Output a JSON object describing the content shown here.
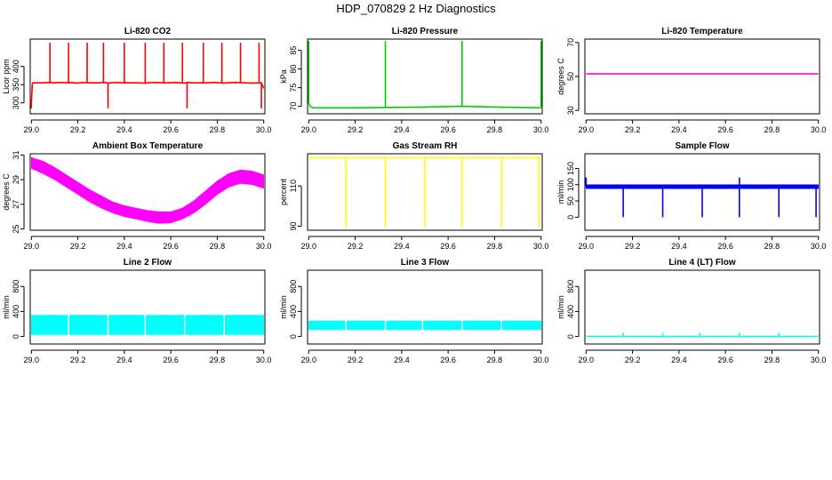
{
  "page_title": "HDP_070829  2 Hz Diagnostics",
  "chart_data": [
    {
      "id": "co2",
      "type": "line",
      "title": "Li-820 CO2",
      "ylabel": "Licor ppm",
      "xlim": [
        28.995,
        30.005
      ],
      "ylim": [
        270,
        475
      ],
      "x_ticks": [
        29.0,
        29.2,
        29.4,
        29.6,
        29.8,
        30.0
      ],
      "x_tick_labels": [
        "29.0",
        "29.2",
        "29.4",
        "29.6",
        "29.8",
        "30.0"
      ],
      "y_ticks": [
        300,
        350,
        400
      ],
      "y_tick_labels": [
        "300",
        "350",
        "400"
      ],
      "color": "#ff0000",
      "series": [
        {
          "name": "CO2",
          "x": [
            29.0,
            29.004,
            29.006,
            29.05,
            29.08,
            29.1,
            29.13,
            29.16,
            29.17,
            29.2,
            29.22,
            29.25,
            29.29,
            29.32,
            29.33,
            29.36,
            29.4,
            29.45,
            29.49,
            29.5,
            29.53,
            29.58,
            29.62,
            29.66,
            29.67,
            29.7,
            29.75,
            29.79,
            29.83,
            29.84,
            29.88,
            29.92,
            29.95,
            29.99,
            30.0
          ],
          "y": [
            300,
            352,
            355,
            355,
            356,
            355,
            356,
            355,
            356,
            354,
            356,
            355,
            355,
            356,
            354,
            356,
            355,
            355,
            354,
            355,
            356,
            355,
            356,
            354,
            356,
            355,
            355,
            356,
            354,
            355,
            356,
            355,
            354,
            355,
            340
          ]
        }
      ],
      "spikes_up": [
        29.08,
        29.16,
        29.24,
        29.31,
        29.4,
        29.49,
        29.57,
        29.65,
        29.74,
        29.82,
        29.9,
        29.98
      ],
      "spike_up_value": 465,
      "spikes_down": [
        29.0,
        29.33,
        29.67,
        29.99
      ],
      "spike_down_value": 285
    },
    {
      "id": "pressure",
      "type": "line",
      "title": "Li-820 Pressure",
      "ylabel": "kPa",
      "xlim": [
        28.995,
        30.005
      ],
      "ylim": [
        68,
        88
      ],
      "x_ticks": [
        29.0,
        29.2,
        29.4,
        29.6,
        29.8,
        30.0
      ],
      "x_tick_labels": [
        "29.0",
        "29.2",
        "29.4",
        "29.6",
        "29.8",
        "30.0"
      ],
      "y_ticks": [
        70,
        75,
        80,
        85
      ],
      "y_tick_labels": [
        "70",
        "75",
        "80",
        "85"
      ],
      "color": "#00cc00",
      "series": [
        {
          "name": "Pressure",
          "x": [
            29.0,
            29.005,
            29.02,
            29.2,
            29.33,
            29.5,
            29.66,
            29.8,
            30.0
          ],
          "y": [
            71,
            70,
            69.6,
            69.6,
            69.7,
            69.8,
            70.0,
            69.8,
            69.6
          ]
        }
      ],
      "spikes_up": [
        29.0,
        29.33,
        29.66,
        30.0
      ],
      "spike_up_value": 87.5,
      "spikes_down": [],
      "spike_down_value": null
    },
    {
      "id": "temperature",
      "type": "line",
      "title": "Li-820 Temperature",
      "ylabel": "degrees C",
      "xlim": [
        28.995,
        30.005
      ],
      "ylim": [
        28,
        72
      ],
      "x_ticks": [
        29.0,
        29.2,
        29.4,
        29.6,
        29.8,
        30.0
      ],
      "x_tick_labels": [
        "29.0",
        "29.2",
        "29.4",
        "29.6",
        "29.8",
        "30.0"
      ],
      "y_ticks": [
        30,
        50,
        70
      ],
      "y_tick_labels": [
        "30",
        "50",
        "70"
      ],
      "color": "#ff00ff",
      "series": [
        {
          "name": "Temperature",
          "x": [
            29.0,
            30.0
          ],
          "y": [
            51.5,
            51.5
          ]
        }
      ],
      "spikes_up": [],
      "spike_up_value": null,
      "spikes_down": [],
      "spike_down_value": null
    },
    {
      "id": "ambient",
      "type": "area",
      "title": "Ambient Box Temperature",
      "ylabel": "degrees C",
      "xlim": [
        28.995,
        30.005
      ],
      "ylim": [
        24.9,
        31.1
      ],
      "x_ticks": [
        29.0,
        29.2,
        29.4,
        29.6,
        29.8,
        30.0
      ],
      "x_tick_labels": [
        "29.0",
        "29.2",
        "29.4",
        "29.6",
        "29.8",
        "30.0"
      ],
      "y_ticks": [
        25,
        27,
        29,
        31
      ],
      "y_tick_labels": [
        "25",
        "27",
        "29",
        "31"
      ],
      "color": "#ff00ff",
      "band": {
        "x": [
          29.0,
          29.05,
          29.1,
          29.15,
          29.2,
          29.25,
          29.3,
          29.35,
          29.4,
          29.45,
          29.5,
          29.55,
          29.6,
          29.65,
          29.7,
          29.75,
          29.8,
          29.85,
          29.9,
          29.95,
          30.0
        ],
        "low": [
          29.9,
          29.5,
          29.0,
          28.4,
          27.8,
          27.2,
          26.7,
          26.3,
          26.0,
          25.8,
          25.6,
          25.45,
          25.5,
          25.8,
          26.3,
          27.0,
          27.8,
          28.4,
          28.7,
          28.6,
          28.3
        ],
        "high": [
          30.8,
          30.5,
          30.0,
          29.4,
          28.8,
          28.2,
          27.7,
          27.2,
          26.9,
          26.7,
          26.5,
          26.4,
          26.4,
          26.7,
          27.3,
          28.1,
          28.9,
          29.5,
          29.8,
          29.7,
          29.4
        ]
      },
      "spikes_up": [],
      "spike_up_value": null,
      "spikes_down": [],
      "spike_down_value": null
    },
    {
      "id": "rh",
      "type": "line",
      "title": "Gas Stream RH",
      "ylabel": "percent",
      "xlim": [
        28.995,
        30.005
      ],
      "ylim": [
        88,
        126
      ],
      "x_ticks": [
        29.0,
        29.2,
        29.4,
        29.6,
        29.8,
        30.0
      ],
      "x_tick_labels": [
        "29.0",
        "29.2",
        "29.4",
        "29.6",
        "29.8",
        "30.0"
      ],
      "y_ticks": [
        90,
        110
      ],
      "y_tick_labels": [
        "90",
        "110"
      ],
      "color": "#ffff00",
      "series": [
        {
          "name": "RH",
          "x": [
            29.0,
            30.0
          ],
          "y": [
            124,
            124
          ]
        }
      ],
      "spikes_up": [],
      "spike_up_value": null,
      "spikes_down": [
        29.16,
        29.33,
        29.5,
        29.66,
        29.83,
        29.99
      ],
      "spike_down_value": 89.5
    },
    {
      "id": "sample",
      "type": "area",
      "title": "Sample Flow",
      "ylabel": "ml/min",
      "xlim": [
        28.995,
        30.005
      ],
      "ylim": [
        -40,
        195
      ],
      "x_ticks": [
        29.0,
        29.2,
        29.4,
        29.6,
        29.8,
        30.0
      ],
      "x_tick_labels": [
        "29.0",
        "29.2",
        "29.4",
        "29.6",
        "29.8",
        "30.0"
      ],
      "y_ticks": [
        0,
        50,
        100,
        150
      ],
      "y_tick_labels": [
        "0",
        "50",
        "100",
        "150"
      ],
      "color": "#0000ff",
      "band": {
        "x": [
          29.0,
          30.0
        ],
        "low": [
          88,
          88
        ],
        "high": [
          100,
          100
        ]
      },
      "spikes_up": [
        29.0,
        29.66
      ],
      "spike_up_value": 122,
      "spikes_down": [
        29.16,
        29.33,
        29.5,
        29.66,
        29.83,
        29.99
      ],
      "spike_down_value": 0
    },
    {
      "id": "line2",
      "type": "area",
      "title": "Line 2 Flow",
      "ylabel": "ml/min",
      "xlim": [
        28.995,
        30.005
      ],
      "ylim": [
        -120,
        1060
      ],
      "x_ticks": [
        29.0,
        29.2,
        29.4,
        29.6,
        29.8,
        30.0
      ],
      "x_tick_labels": [
        "29.0",
        "29.2",
        "29.4",
        "29.6",
        "29.8",
        "30.0"
      ],
      "y_ticks": [
        0,
        400,
        800
      ],
      "y_tick_labels": [
        "0",
        "400",
        "800"
      ],
      "color": "#00ffff",
      "band": {
        "x": [
          29.0,
          30.0
        ],
        "low": [
          30,
          30
        ],
        "high": [
          340,
          340
        ]
      },
      "gaps": [
        29.16,
        29.33,
        29.49,
        29.66,
        29.83
      ],
      "spikes_up": [],
      "spike_up_value": null,
      "spikes_down": [],
      "spike_down_value": null
    },
    {
      "id": "line3",
      "type": "area",
      "title": "Line 3 Flow",
      "ylabel": "ml/min",
      "xlim": [
        28.995,
        30.005
      ],
      "ylim": [
        -120,
        1060
      ],
      "x_ticks": [
        29.0,
        29.2,
        29.4,
        29.6,
        29.8,
        30.0
      ],
      "x_tick_labels": [
        "29.0",
        "29.2",
        "29.4",
        "29.6",
        "29.8",
        "30.0"
      ],
      "y_ticks": [
        0,
        400,
        800
      ],
      "y_tick_labels": [
        "0",
        "400",
        "800"
      ],
      "color": "#00ffff",
      "band": {
        "x": [
          29.0,
          30.0
        ],
        "low": [
          110,
          110
        ],
        "high": [
          250,
          250
        ]
      },
      "gaps": [
        29.16,
        29.33,
        29.49,
        29.66,
        29.83
      ],
      "spikes_up": [],
      "spike_up_value": null,
      "spikes_down": [],
      "spike_down_value": null
    },
    {
      "id": "line4",
      "type": "line",
      "title": "Line 4 (LT) Flow",
      "ylabel": "ml/min",
      "xlim": [
        28.995,
        30.005
      ],
      "ylim": [
        -120,
        1060
      ],
      "x_ticks": [
        29.0,
        29.2,
        29.4,
        29.6,
        29.8,
        30.0
      ],
      "x_tick_labels": [
        "29.0",
        "29.2",
        "29.4",
        "29.6",
        "29.8",
        "30.0"
      ],
      "y_ticks": [
        0,
        400,
        800
      ],
      "y_tick_labels": [
        "0",
        "400",
        "800"
      ],
      "color": "#00ffff",
      "series": [
        {
          "name": "Line 4",
          "x": [
            29.0,
            30.0
          ],
          "y": [
            2,
            2
          ]
        }
      ],
      "spikes_up": [
        29.16,
        29.33,
        29.49,
        29.66,
        29.83
      ],
      "spike_up_value": 60,
      "spikes_down": [],
      "spike_down_value": null
    }
  ]
}
